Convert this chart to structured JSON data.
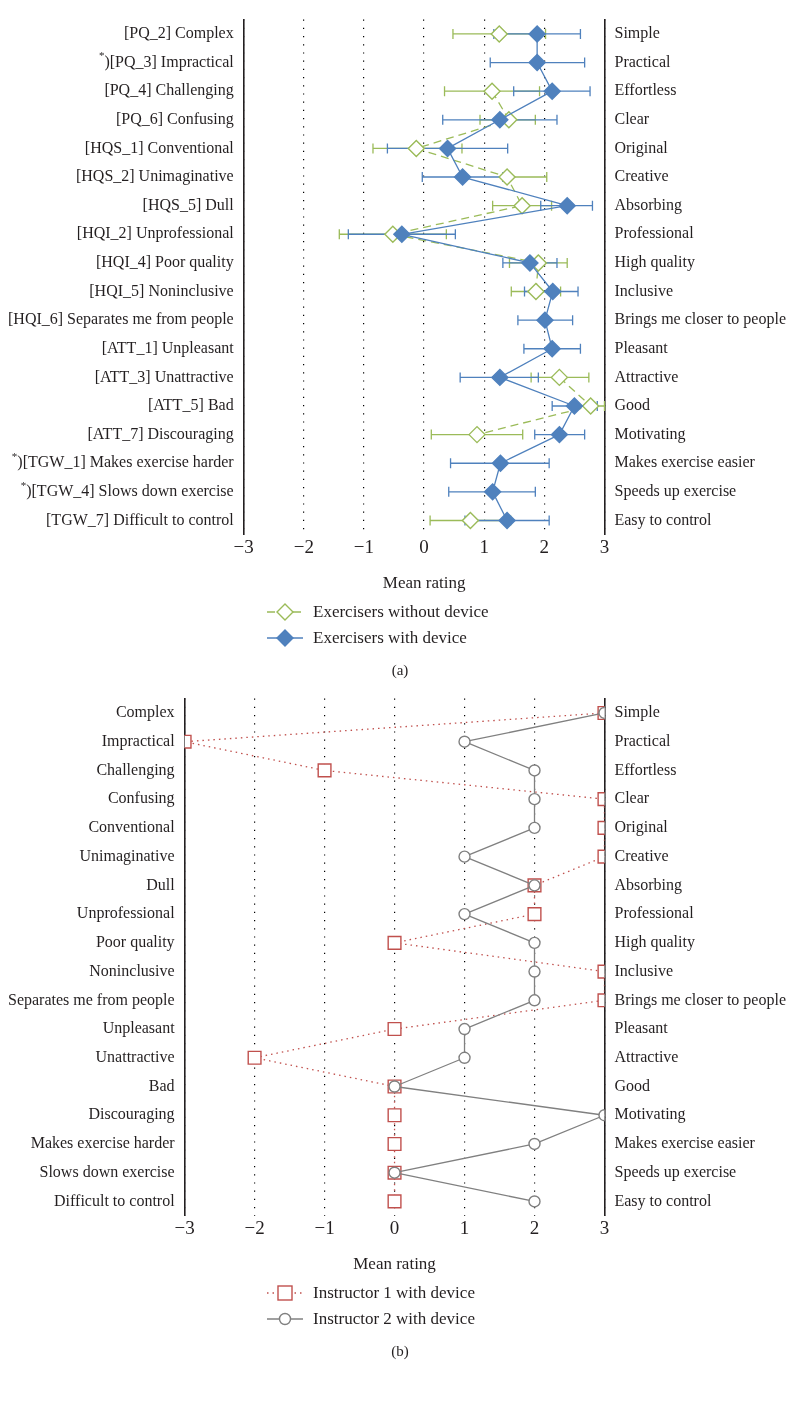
{
  "chart_data": [
    {
      "type": "line",
      "orientation": "horizontal",
      "xlabel": "Mean rating",
      "categories": [
        "[PQ_2] Complex",
        "$^{*}$)[PQ_3] Impractical",
        "[PQ_4] Challenging",
        "[PQ_6] Confusing",
        "[HQS_1] Conventional",
        "[HQS_2] Unimaginative",
        "[HQS_5] Dull",
        "[HQI_2] Unprofessional",
        "[HQI_4] Poor quality",
        "[HQI_5] Noninclusive",
        "[HQI_6] Separates me from people",
        "[ATT_1] Unpleasant",
        "[ATT_3] Unattractive",
        "[ATT_5] Bad",
        "[ATT_7] Discouraging",
        "$^{*}$)[TGW_1] Makes exercise harder",
        "$^{*}$)[TGW_4] Slows down exercise",
        "[TGW_7] Difficult to control"
      ],
      "y2_categories": [
        "Simple",
        "Practical",
        "Effortless",
        "Clear",
        "Original",
        "Creative",
        "Absorbing",
        "Professional",
        "High quality",
        "Inclusive",
        "Brings me closer to people",
        "Pleasant",
        "Attractive",
        "Good",
        "Motivating",
        "Makes exercise easier",
        "Speeds up exercise",
        "Easy to control"
      ],
      "xlim": [
        -3,
        3
      ],
      "xticks": [
        -3,
        -2,
        -1,
        0,
        1,
        2,
        3
      ],
      "grid": "x",
      "legend": "bottom",
      "series": [
        {
          "name": "Exercisers without device",
          "color": "#9bbb59",
          "marker": "diamond",
          "line_style": "dashed",
          "values": [
            1.25,
            null,
            1.13,
            1.41,
            -0.13,
            1.38,
            1.63,
            -0.52,
            1.9,
            1.86,
            null,
            null,
            2.25,
            2.77,
            0.88,
            null,
            null,
            0.77
          ],
          "errors": [
            [
              0.48,
              2.02
            ],
            null,
            [
              0.34,
              1.92
            ],
            [
              0.93,
              1.85
            ],
            [
              -0.85,
              0.63
            ],
            [
              1.38,
              2.04
            ],
            [
              1.14,
              2.12
            ],
            [
              -1.41,
              0.37
            ],
            [
              1.42,
              2.38
            ],
            [
              1.45,
              2.27
            ],
            null,
            null,
            [
              1.78,
              2.74
            ],
            [
              2.77,
              3.0
            ],
            [
              0.12,
              1.64
            ],
            null,
            null,
            [
              0.1,
              1.44
            ]
          ]
        },
        {
          "name": "Exercisers with device",
          "color": "#4f81bd",
          "marker": "diamond",
          "line_style": "solid",
          "values": [
            1.88,
            1.88,
            2.13,
            1.26,
            0.39,
            0.64,
            2.38,
            -0.37,
            1.76,
            2.14,
            2.01,
            2.13,
            1.26,
            2.5,
            2.25,
            1.27,
            1.14,
            1.38
          ],
          "errors": [
            [
              1.16,
              2.6
            ],
            [
              1.1,
              2.67
            ],
            [
              1.49,
              2.76
            ],
            [
              0.31,
              2.21
            ],
            [
              -0.61,
              1.39
            ],
            [
              -0.03,
              1.31
            ],
            [
              1.94,
              2.8
            ],
            [
              -1.26,
              0.52
            ],
            [
              1.31,
              2.21
            ],
            [
              1.67,
              2.56
            ],
            [
              1.56,
              2.47
            ],
            [
              1.66,
              2.6
            ],
            [
              0.6,
              1.9
            ],
            [
              2.13,
              2.88
            ],
            [
              1.84,
              2.67
            ],
            [
              0.44,
              2.08
            ],
            [
              0.41,
              1.85
            ],
            [
              0.68,
              2.08
            ]
          ]
        }
      ],
      "annotations": [
        "(a)"
      ]
    },
    {
      "type": "line",
      "orientation": "horizontal",
      "xlabel": "Mean rating",
      "categories": [
        "Complex",
        "Impractical",
        "Challenging",
        "Confusing",
        "Conventional",
        "Unimaginative",
        "Dull",
        "Unprofessional",
        "Poor quality",
        "Noninclusive",
        "Separates me from people",
        "Unpleasant",
        "Unattractive",
        "Bad",
        "Discouraging",
        "Makes exercise harder",
        "Slows down exercise",
        "Difficult to control"
      ],
      "y2_categories": [
        "Simple",
        "Practical",
        "Effortless",
        "Clear",
        "Original",
        "Creative",
        "Absorbing",
        "Professional",
        "High quality",
        "Inclusive",
        "Brings me closer to people",
        "Pleasant",
        "Attractive",
        "Good",
        "Motivating",
        "Makes exercise easier",
        "Speeds up exercise",
        "Easy to control"
      ],
      "xlim": [
        -3,
        3
      ],
      "xticks": [
        -3,
        -2,
        -1,
        0,
        1,
        2,
        3
      ],
      "grid": "x",
      "legend": "bottom",
      "series": [
        {
          "name": "Instructor 1 with device",
          "color": "#c0504d",
          "marker": "square",
          "line_style": "dotted",
          "values": [
            3,
            -3,
            -1,
            3,
            3,
            3,
            2,
            2,
            0,
            3,
            3,
            0,
            -2,
            0,
            0,
            0,
            0,
            0
          ]
        },
        {
          "name": "Instructor 2 with device",
          "color": "#808080",
          "marker": "circle",
          "line_style": "solid",
          "values": [
            3,
            1,
            2,
            2,
            2,
            1,
            2,
            1,
            2,
            2,
            2,
            1,
            1,
            0,
            3,
            2,
            0,
            2
          ]
        }
      ],
      "annotations": [
        "(b)"
      ]
    }
  ]
}
